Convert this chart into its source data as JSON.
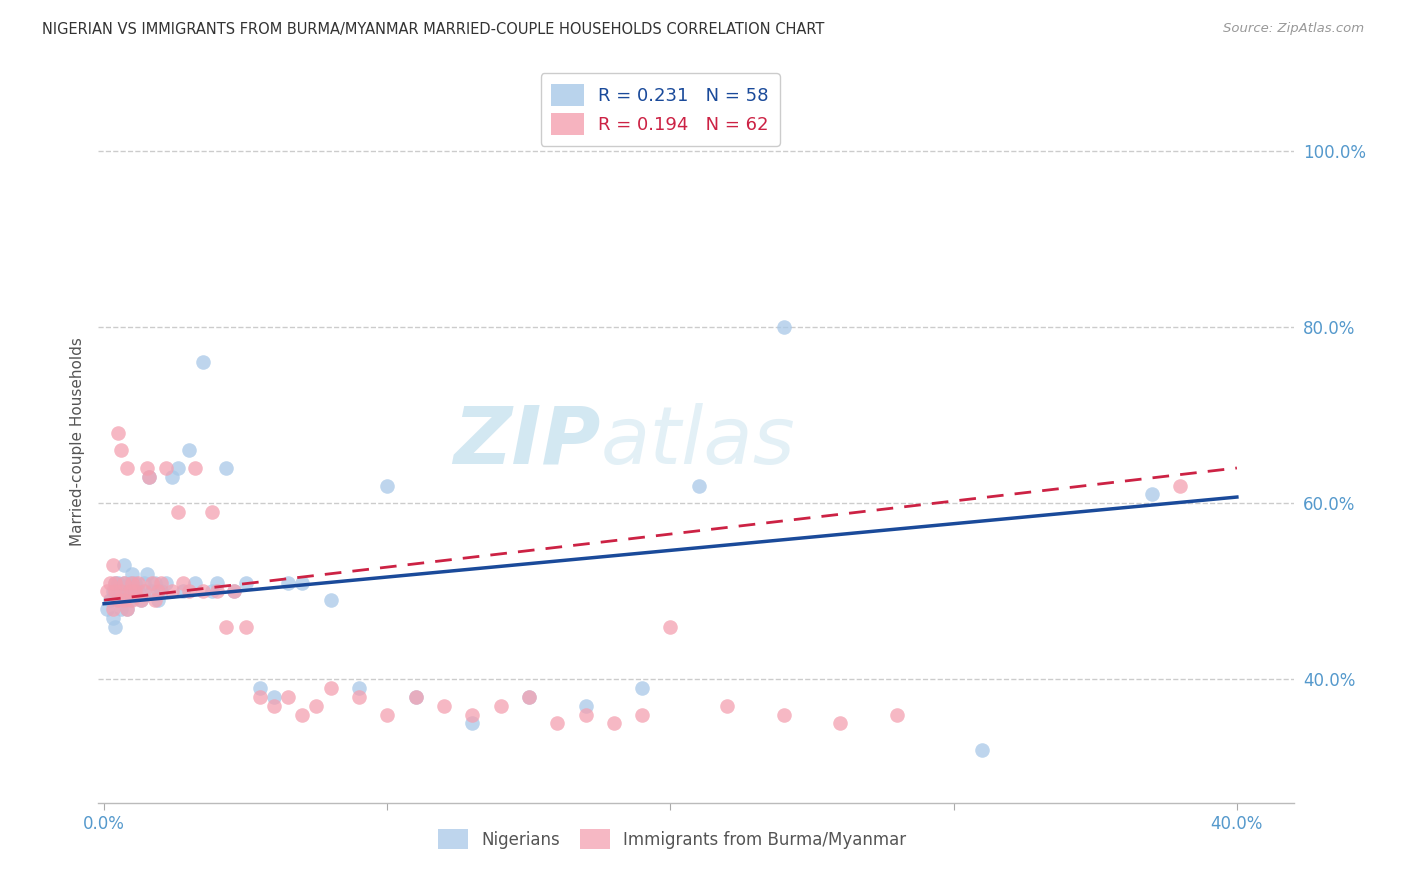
{
  "title": "NIGERIAN VS IMMIGRANTS FROM BURMA/MYANMAR MARRIED-COUPLE HOUSEHOLDS CORRELATION CHART",
  "source": "Source: ZipAtlas.com",
  "ylabel": "Married-couple Households",
  "x_tick_labels": [
    "0.0%",
    "",
    "",
    "",
    "40.0%"
  ],
  "x_tick_vals": [
    0.0,
    0.1,
    0.2,
    0.3,
    0.4
  ],
  "y_tick_labels": [
    "40.0%",
    "60.0%",
    "80.0%",
    "100.0%"
  ],
  "y_tick_vals": [
    0.4,
    0.6,
    0.8,
    1.0
  ],
  "xlim": [
    -0.002,
    0.42
  ],
  "ylim": [
    0.26,
    1.08
  ],
  "nigerian_color": "#a8c8e8",
  "burma_color": "#f4a0b0",
  "nigerian_line_color": "#1a4a9a",
  "burma_line_color": "#cc2244",
  "background_color": "#ffffff",
  "grid_color": "#cccccc",
  "axis_color": "#5599cc",
  "title_color": "#333333",
  "watermark_color": "#cce4f0",
  "nigerian_x": [
    0.001,
    0.002,
    0.003,
    0.003,
    0.004,
    0.004,
    0.005,
    0.005,
    0.005,
    0.006,
    0.006,
    0.007,
    0.007,
    0.007,
    0.008,
    0.008,
    0.009,
    0.009,
    0.01,
    0.01,
    0.011,
    0.012,
    0.013,
    0.014,
    0.015,
    0.016,
    0.017,
    0.018,
    0.019,
    0.02,
    0.022,
    0.024,
    0.026,
    0.028,
    0.03,
    0.032,
    0.035,
    0.038,
    0.04,
    0.043,
    0.046,
    0.05,
    0.055,
    0.06,
    0.065,
    0.07,
    0.08,
    0.09,
    0.1,
    0.11,
    0.13,
    0.15,
    0.17,
    0.19,
    0.21,
    0.24,
    0.31,
    0.37
  ],
  "nigerian_y": [
    0.48,
    0.49,
    0.5,
    0.47,
    0.51,
    0.46,
    0.5,
    0.49,
    0.51,
    0.48,
    0.5,
    0.51,
    0.49,
    0.53,
    0.5,
    0.48,
    0.51,
    0.49,
    0.5,
    0.52,
    0.51,
    0.5,
    0.49,
    0.51,
    0.52,
    0.63,
    0.5,
    0.51,
    0.49,
    0.5,
    0.51,
    0.63,
    0.64,
    0.5,
    0.66,
    0.51,
    0.76,
    0.5,
    0.51,
    0.64,
    0.5,
    0.51,
    0.39,
    0.38,
    0.51,
    0.51,
    0.49,
    0.39,
    0.62,
    0.38,
    0.35,
    0.38,
    0.37,
    0.39,
    0.62,
    0.8,
    0.32,
    0.61
  ],
  "burma_x": [
    0.001,
    0.002,
    0.003,
    0.003,
    0.004,
    0.004,
    0.005,
    0.005,
    0.006,
    0.006,
    0.007,
    0.007,
    0.008,
    0.008,
    0.009,
    0.01,
    0.01,
    0.011,
    0.012,
    0.013,
    0.014,
    0.015,
    0.016,
    0.017,
    0.018,
    0.019,
    0.02,
    0.022,
    0.024,
    0.026,
    0.028,
    0.03,
    0.032,
    0.035,
    0.038,
    0.04,
    0.043,
    0.046,
    0.05,
    0.055,
    0.06,
    0.065,
    0.07,
    0.075,
    0.08,
    0.09,
    0.1,
    0.11,
    0.12,
    0.13,
    0.14,
    0.15,
    0.16,
    0.17,
    0.18,
    0.19,
    0.2,
    0.22,
    0.24,
    0.26,
    0.28,
    0.38
  ],
  "burma_y": [
    0.5,
    0.51,
    0.48,
    0.53,
    0.5,
    0.51,
    0.49,
    0.68,
    0.5,
    0.66,
    0.51,
    0.49,
    0.48,
    0.64,
    0.5,
    0.51,
    0.49,
    0.5,
    0.51,
    0.49,
    0.5,
    0.64,
    0.63,
    0.51,
    0.49,
    0.5,
    0.51,
    0.64,
    0.5,
    0.59,
    0.51,
    0.5,
    0.64,
    0.5,
    0.59,
    0.5,
    0.46,
    0.5,
    0.46,
    0.38,
    0.37,
    0.38,
    0.36,
    0.37,
    0.39,
    0.38,
    0.36,
    0.38,
    0.37,
    0.36,
    0.37,
    0.38,
    0.35,
    0.36,
    0.35,
    0.36,
    0.46,
    0.37,
    0.36,
    0.35,
    0.36,
    0.62
  ],
  "nig_line_x": [
    0.0,
    0.4
  ],
  "nig_line_y": [
    0.486,
    0.607
  ],
  "bur_line_x": [
    0.0,
    0.4
  ],
  "bur_line_y": [
    0.49,
    0.64
  ]
}
